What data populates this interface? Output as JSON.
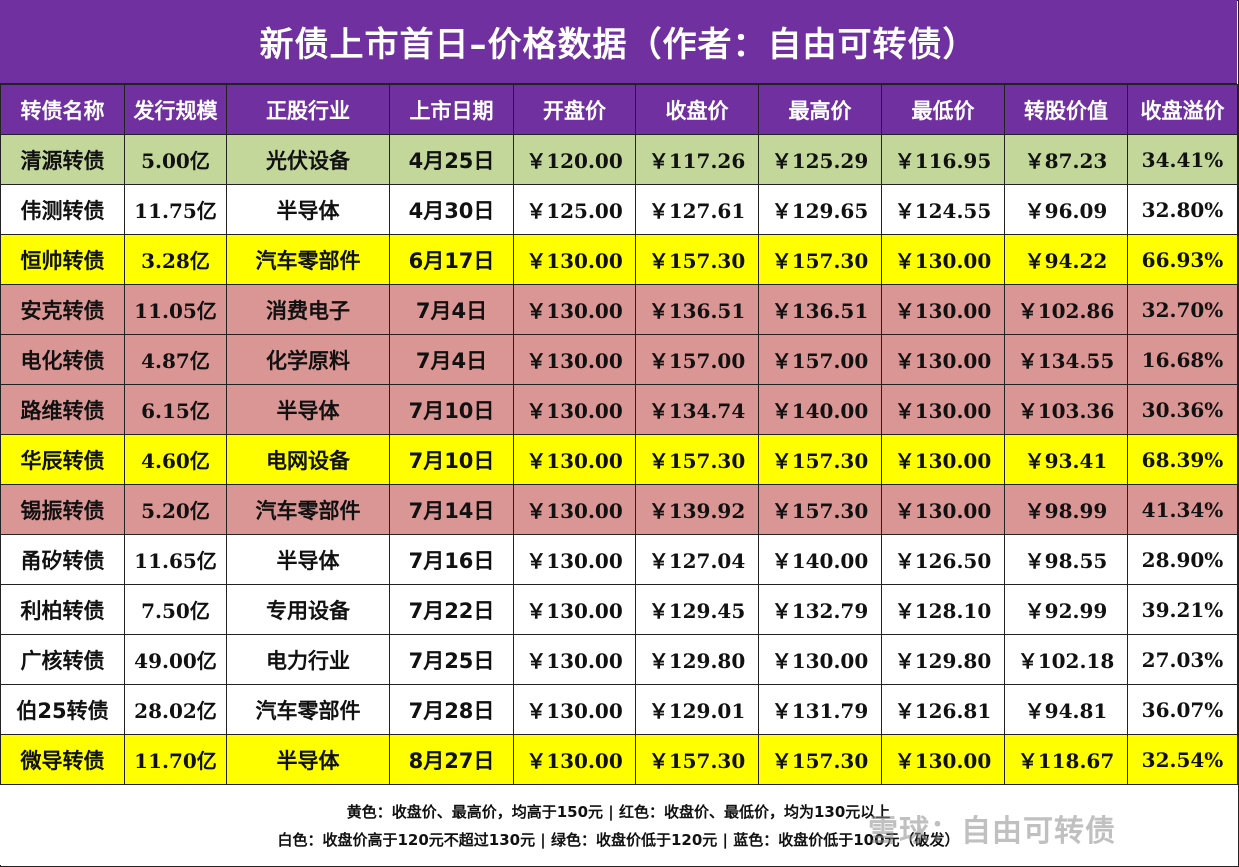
{
  "title": "新债上市首日–价格数据（作者：自由可转债）",
  "headers": [
    "转债名称",
    "发行规模",
    "正股行业",
    "上市日期",
    "开盘价",
    "收盘价",
    "最高价",
    "最低价",
    "转股价值",
    "收盘溢价"
  ],
  "row_colors": {
    "green": "#c4d79b",
    "white": "#ffffff",
    "yellow": "#ffff00",
    "red": "#da9694",
    "header": "#7030a0"
  },
  "rows": [
    {
      "color": "green",
      "cells": [
        "清源转债",
        "5.00亿",
        "光伏设备",
        "4月25日",
        "￥120.00",
        "￥117.26",
        "￥125.29",
        "￥116.95",
        "￥87.23",
        "34.41%"
      ]
    },
    {
      "color": "white",
      "cells": [
        "伟测转债",
        "11.75亿",
        "半导体",
        "4月30日",
        "￥125.00",
        "￥127.61",
        "￥129.65",
        "￥124.55",
        "￥96.09",
        "32.80%"
      ]
    },
    {
      "color": "yellow",
      "cells": [
        "恒帅转债",
        "3.28亿",
        "汽车零部件",
        "6月17日",
        "￥130.00",
        "￥157.30",
        "￥157.30",
        "￥130.00",
        "￥94.22",
        "66.93%"
      ]
    },
    {
      "color": "red",
      "cells": [
        "安克转债",
        "11.05亿",
        "消费电子",
        "7月4日",
        "￥130.00",
        "￥136.51",
        "￥136.51",
        "￥130.00",
        "￥102.86",
        "32.70%"
      ]
    },
    {
      "color": "red",
      "cells": [
        "电化转债",
        "4.87亿",
        "化学原料",
        "7月4日",
        "￥130.00",
        "￥157.00",
        "￥157.00",
        "￥130.00",
        "￥134.55",
        "16.68%"
      ]
    },
    {
      "color": "red",
      "cells": [
        "路维转债",
        "6.15亿",
        "半导体",
        "7月10日",
        "￥130.00",
        "￥134.74",
        "￥140.00",
        "￥130.00",
        "￥103.36",
        "30.36%"
      ]
    },
    {
      "color": "yellow",
      "cells": [
        "华辰转债",
        "4.60亿",
        "电网设备",
        "7月10日",
        "￥130.00",
        "￥157.30",
        "￥157.30",
        "￥130.00",
        "￥93.41",
        "68.39%"
      ]
    },
    {
      "color": "red",
      "cells": [
        "锡振转债",
        "5.20亿",
        "汽车零部件",
        "7月14日",
        "￥130.00",
        "￥139.92",
        "￥157.30",
        "￥130.00",
        "￥98.99",
        "41.34%"
      ]
    },
    {
      "color": "white",
      "cells": [
        "甬矽转债",
        "11.65亿",
        "半导体",
        "7月16日",
        "￥130.00",
        "￥127.04",
        "￥140.00",
        "￥126.50",
        "￥98.55",
        "28.90%"
      ]
    },
    {
      "color": "white",
      "cells": [
        "利柏转债",
        "7.50亿",
        "专用设备",
        "7月22日",
        "￥130.00",
        "￥129.45",
        "￥132.79",
        "￥128.10",
        "￥92.99",
        "39.21%"
      ]
    },
    {
      "color": "white",
      "cells": [
        "广核转债",
        "49.00亿",
        "电力行业",
        "7月25日",
        "￥130.00",
        "￥129.80",
        "￥130.00",
        "￥129.80",
        "￥102.18",
        "27.03%"
      ]
    },
    {
      "color": "white",
      "cells": [
        "伯25转债",
        "28.02亿",
        "汽车零部件",
        "7月28日",
        "￥130.00",
        "￥129.01",
        "￥131.79",
        "￥126.81",
        "￥94.81",
        "36.07%"
      ]
    },
    {
      "color": "yellow",
      "cells": [
        "微导转债",
        "11.70亿",
        "半导体",
        "8月27日",
        "￥130.00",
        "￥157.30",
        "￥157.30",
        "￥130.00",
        "￥118.67",
        "32.54%"
      ]
    }
  ],
  "legend": {
    "line1": "黄色：收盘价、最高价，均高于150元 | 红色：收盘价、最低价，均为130元以上",
    "line2": "白色：收盘价高于120元不超过130元 | 绿色：收盘价低于120元  | 蓝色：收盘价低于100元（破发）"
  },
  "watermark": "雪球：自由可转债"
}
